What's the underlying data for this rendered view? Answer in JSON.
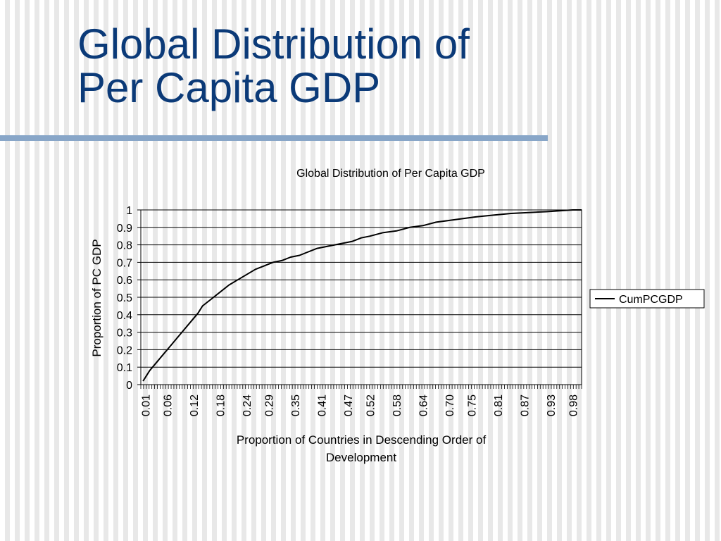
{
  "slide": {
    "title_line1": "Global Distribution of",
    "title_line2": "Per Capita GDP"
  },
  "colors": {
    "title": "#0b3a78",
    "rule": "#88a6c8",
    "series": "#000000",
    "gridline": "#000000"
  },
  "chart_data": {
    "type": "line",
    "title": "Global Distribution of Per Capita GDP",
    "xlabel_lines": [
      "Proportion of Countries in Descending Order of",
      "Development"
    ],
    "ylabel": "Proportion of PC GDP",
    "xlim": [
      0,
      1
    ],
    "ylim": [
      0,
      1
    ],
    "y_ticks": [
      "0",
      "0.1",
      "0.2",
      "0.3",
      "0.4",
      "0.5",
      "0.6",
      "0.7",
      "0.8",
      "0.9",
      "1"
    ],
    "x_tick_labels": [
      {
        "label": "0.01",
        "x": 0.01
      },
      {
        "label": "0.06",
        "x": 0.06
      },
      {
        "label": "0.12",
        "x": 0.12
      },
      {
        "label": "0.18",
        "x": 0.18
      },
      {
        "label": "0.24",
        "x": 0.24
      },
      {
        "label": "0.29",
        "x": 0.29
      },
      {
        "label": "0.35",
        "x": 0.35
      },
      {
        "label": "0.41",
        "x": 0.41
      },
      {
        "label": "0.47",
        "x": 0.47
      },
      {
        "label": "0.52",
        "x": 0.52
      },
      {
        "label": "0.58",
        "x": 0.58
      },
      {
        "label": "0.64",
        "x": 0.64
      },
      {
        "label": "0.70",
        "x": 0.7
      },
      {
        "label": "0.75",
        "x": 0.75
      },
      {
        "label": "0.81",
        "x": 0.81
      },
      {
        "label": "0.87",
        "x": 0.87
      },
      {
        "label": "0.93",
        "x": 0.93
      },
      {
        "label": "0.98",
        "x": 0.98
      }
    ],
    "grid": true,
    "legend_position": "right",
    "series": [
      {
        "name": "CumPCGDP",
        "x": [
          0.005,
          0.01,
          0.02,
          0.03,
          0.04,
          0.05,
          0.06,
          0.07,
          0.08,
          0.09,
          0.1,
          0.11,
          0.12,
          0.13,
          0.14,
          0.15,
          0.16,
          0.17,
          0.18,
          0.2,
          0.22,
          0.24,
          0.26,
          0.28,
          0.3,
          0.32,
          0.34,
          0.36,
          0.38,
          0.4,
          0.42,
          0.44,
          0.46,
          0.48,
          0.5,
          0.52,
          0.55,
          0.58,
          0.61,
          0.64,
          0.67,
          0.7,
          0.73,
          0.76,
          0.8,
          0.84,
          0.88,
          0.92,
          0.95,
          0.98,
          1.0
        ],
        "values": [
          0.02,
          0.04,
          0.08,
          0.11,
          0.14,
          0.17,
          0.2,
          0.23,
          0.26,
          0.29,
          0.32,
          0.35,
          0.38,
          0.41,
          0.45,
          0.47,
          0.49,
          0.51,
          0.53,
          0.57,
          0.6,
          0.63,
          0.66,
          0.68,
          0.7,
          0.71,
          0.73,
          0.74,
          0.76,
          0.78,
          0.79,
          0.8,
          0.81,
          0.82,
          0.84,
          0.85,
          0.87,
          0.88,
          0.9,
          0.91,
          0.93,
          0.94,
          0.95,
          0.96,
          0.97,
          0.98,
          0.985,
          0.99,
          0.995,
          1.0,
          1.0
        ]
      }
    ]
  }
}
